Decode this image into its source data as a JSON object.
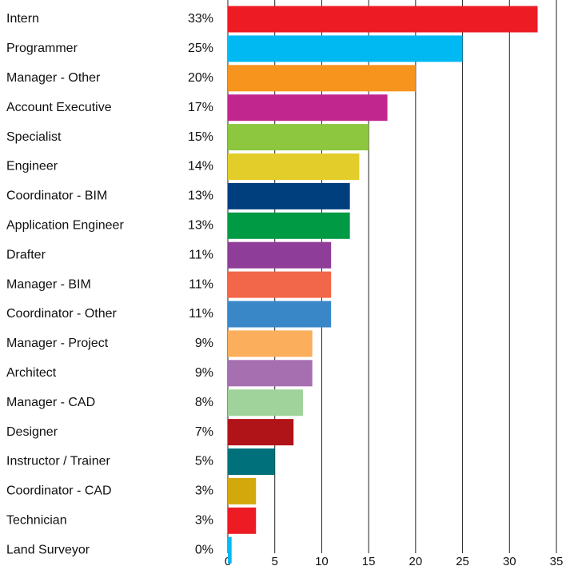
{
  "chart_data": {
    "type": "barh",
    "categories": [
      "Intern",
      "Programmer",
      "Manager - Other",
      "Account Executive",
      "Specialist",
      "Engineer",
      "Coordinator - BIM",
      "Application Engineer",
      "Drafter",
      "Manager - BIM",
      "Coordinator - Other",
      "Manager - Project",
      "Architect",
      "Manager - CAD",
      "Designer",
      "Instructor / Trainer",
      "Coordinator - CAD",
      "Technician",
      "Land Surveyor"
    ],
    "values": [
      33,
      25,
      20,
      17,
      15,
      14,
      13,
      13,
      11,
      11,
      11,
      9,
      9,
      8,
      7,
      5,
      3,
      3,
      0.4
    ],
    "value_labels": [
      "33%",
      "25%",
      "20%",
      "17%",
      "15%",
      "14%",
      "13%",
      "13%",
      "11%",
      "11%",
      "11%",
      "9%",
      "9%",
      "8%",
      "7%",
      "5%",
      "3%",
      "3%",
      "0%"
    ],
    "colors": [
      "#ed1c24",
      "#00b9f2",
      "#f7941d",
      "#c1268f",
      "#8dc63f",
      "#e2cd2a",
      "#003f7d",
      "#009a44",
      "#8e3d98",
      "#f26649",
      "#3a87c8",
      "#fbae5c",
      "#a66fb0",
      "#9fd39b",
      "#b01318",
      "#00717b",
      "#d3a80c",
      "#ed1c24",
      "#00b9f2"
    ],
    "xlim": [
      0,
      35
    ],
    "xticks": [
      0,
      5,
      10,
      15,
      20,
      25,
      30,
      35
    ],
    "grid": true
  }
}
